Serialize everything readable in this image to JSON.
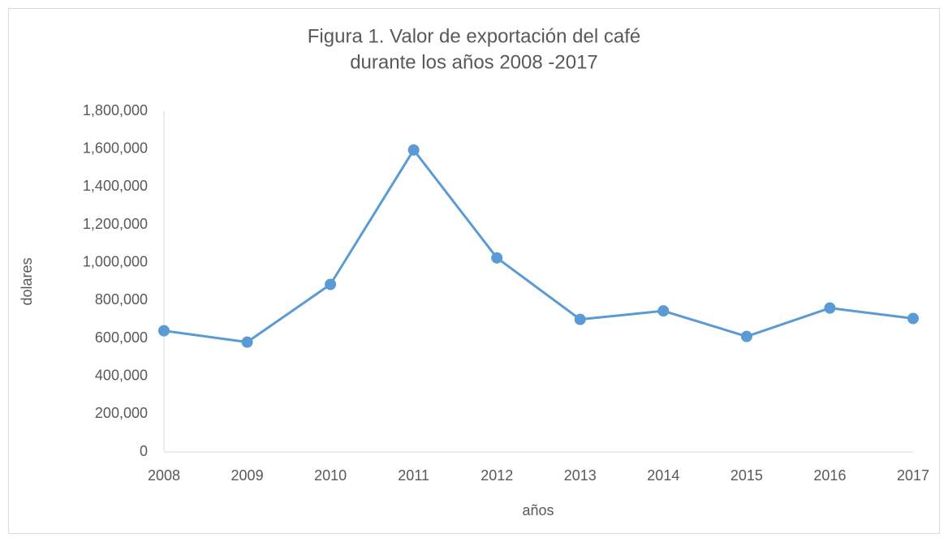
{
  "chart_data": {
    "type": "line",
    "title": [
      "Figura 1. Valor de exportación del café",
      "durante los años 2008 -2017"
    ],
    "xlabel": "años",
    "ylabel": "dolares",
    "categories": [
      "2008",
      "2009",
      "2010",
      "2011",
      "2012",
      "2013",
      "2014",
      "2015",
      "2016",
      "2017"
    ],
    "series": [
      {
        "name": "dolares",
        "color": "#5b9bd5",
        "values": [
          640000,
          580000,
          885000,
          1595000,
          1025000,
          700000,
          745000,
          610000,
          760000,
          705000
        ]
      }
    ],
    "ylim": [
      0,
      1800000
    ],
    "yticks": [
      0,
      {
        "value": 200000,
        "label": "200,000"
      },
      {
        "value": 400000,
        "label": "400,000"
      },
      {
        "value": 600000,
        "label": "600,000"
      },
      {
        "value": 800000,
        "label": "800,000"
      },
      {
        "value": 1000000,
        "label": "1,000,000"
      },
      {
        "value": 1200000,
        "label": "1,200,000"
      },
      {
        "value": 1400000,
        "label": "1,400,000"
      },
      {
        "value": 1600000,
        "label": "1,600,000"
      },
      {
        "value": 1800000,
        "label": "1,800,000"
      }
    ],
    "grid": false
  }
}
